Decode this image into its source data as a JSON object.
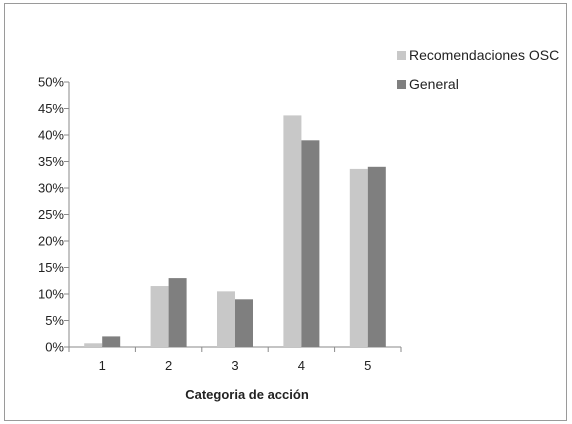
{
  "chart_data": {
    "type": "bar",
    "title": "",
    "xlabel": "Categoria de acción",
    "ylabel": "",
    "categories": [
      "1",
      "2",
      "3",
      "4",
      "5"
    ],
    "series": [
      {
        "name": "Recomendaciones OSC",
        "values": [
          0.7,
          11.5,
          10.5,
          43.7,
          33.6
        ],
        "color": "#c8c8c8"
      },
      {
        "name": "General",
        "values": [
          2.0,
          13.0,
          9.0,
          39.0,
          34.0
        ],
        "color": "#7f7f7f"
      }
    ],
    "ylim": [
      0,
      50
    ],
    "ytick_labels": [
      "0%",
      "5%",
      "10%",
      "15%",
      "20%",
      "25%",
      "30%",
      "35%",
      "40%",
      "45%",
      "50%"
    ],
    "grid": false,
    "legend_position": "top-right"
  }
}
